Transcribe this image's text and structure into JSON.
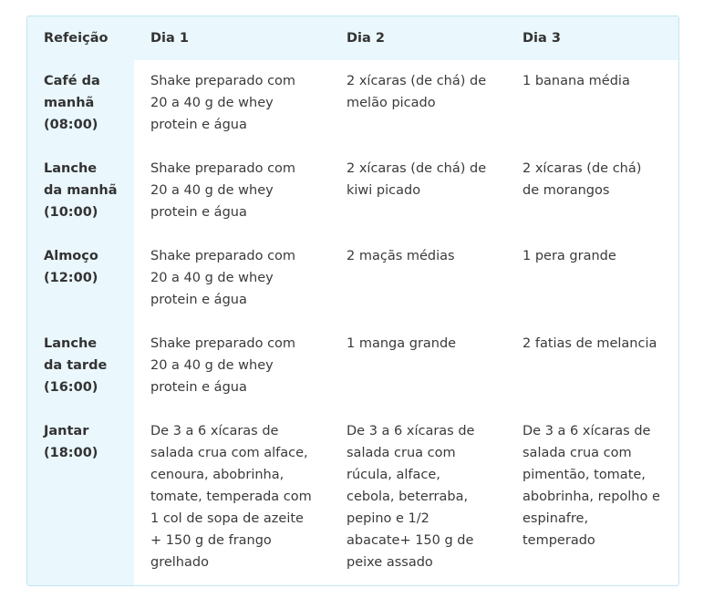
{
  "table": {
    "header": [
      "Refeição",
      "Dia 1",
      "Dia 2",
      "Dia 3"
    ],
    "rows": [
      [
        "Café da manhã (08:00)",
        "Shake preparado com 20 a 40 g de whey protein e água",
        "2 xícaras (de chá) de melão picado",
        "1 banana média"
      ],
      [
        "Lanche da manhã (10:00)",
        "Shake preparado com 20 a 40 g de whey protein e água",
        "2 xícaras (de chá) de kiwi picado",
        "2 xícaras (de chá) de morangos"
      ],
      [
        "Almoço (12:00)",
        "Shake preparado com 20 a 40 g de whey protein e água",
        "2 maçãs médias",
        "1 pera grande"
      ],
      [
        "Lanche da tarde (16:00)",
        "Shake preparado com 20 a 40 g de whey protein e água",
        "1 manga grande",
        "2 fatias de melancia"
      ],
      [
        "Jantar (18:00)",
        "De 3 a 6 xícaras de salada crua com alface, cenoura, abobrinha, tomate, temperada com 1 col de sopa de azeite + 150 g de frango grelhado",
        "De 3 a 6 xícaras de salada crua com rúcula, alface, cebola, beterraba, pepino e 1/2 abacate+ 150 g de peixe assado",
        "De 3 a 6 xícaras de salada crua com pimentão, tomate, abobrinha, repolho e espinafre, temperado"
      ]
    ]
  }
}
